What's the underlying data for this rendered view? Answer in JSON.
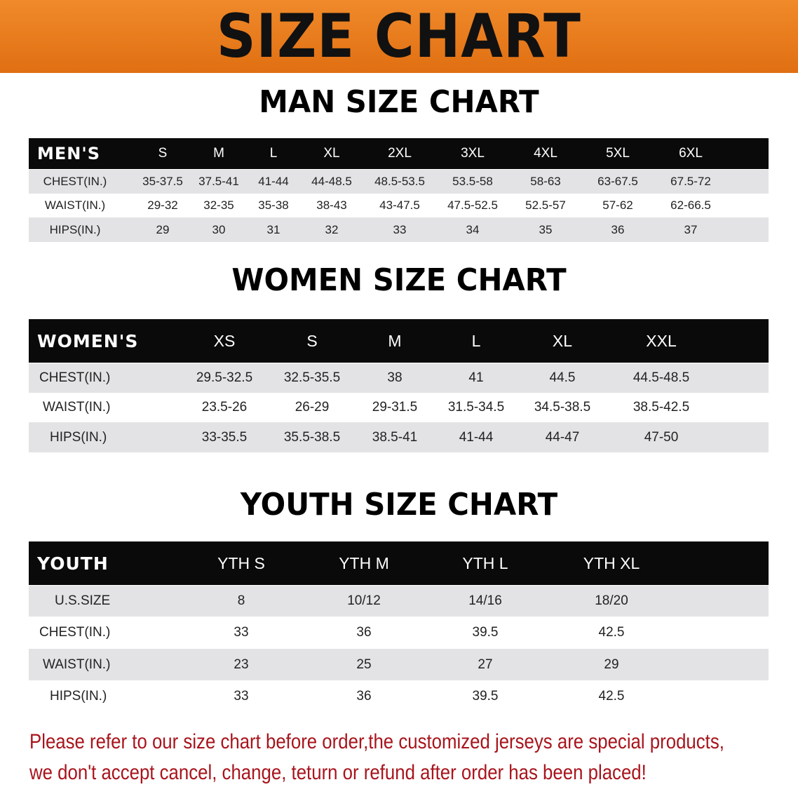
{
  "banner_title": "SIZE CHART",
  "colors": {
    "banner": "#e8761a",
    "header_row": "#0a0a0a",
    "stripe": "#e3e3e5",
    "note": "#a8141c"
  },
  "men": {
    "title": "MAN SIZE CHART",
    "header": "MEN'S",
    "sizes": [
      "S",
      "M",
      "L",
      "XL",
      "2XL",
      "3XL",
      "4XL",
      "5XL",
      "6XL"
    ],
    "rows": [
      {
        "label": "CHEST(IN.)",
        "values": [
          "35-37.5",
          "37.5-41",
          "41-44",
          "44-48.5",
          "48.5-53.5",
          "53.5-58",
          "58-63",
          "63-67.5",
          "67.5-72"
        ]
      },
      {
        "label": "WAIST(IN.)",
        "values": [
          "29-32",
          "32-35",
          "35-38",
          "38-43",
          "43-47.5",
          "47.5-52.5",
          "52.5-57",
          "57-62",
          "62-66.5"
        ]
      },
      {
        "label": "HIPS(IN.)",
        "values": [
          "29",
          "30",
          "31",
          "32",
          "33",
          "34",
          "35",
          "36",
          "37"
        ]
      }
    ]
  },
  "women": {
    "title": "WOMEN SIZE CHART",
    "header": "WOMEN'S",
    "sizes": [
      "XS",
      "S",
      "M",
      "L",
      "XL",
      "XXL"
    ],
    "rows": [
      {
        "label": "CHEST(IN.)",
        "values": [
          "29.5-32.5",
          "32.5-35.5",
          "38",
          "41",
          "44.5",
          "44.5-48.5"
        ]
      },
      {
        "label": "WAIST(IN.)",
        "values": [
          "23.5-26",
          "26-29",
          "29-31.5",
          "31.5-34.5",
          "34.5-38.5",
          "38.5-42.5"
        ]
      },
      {
        "label": "HIPS(IN.)",
        "values": [
          "33-35.5",
          "35.5-38.5",
          "38.5-41",
          "41-44",
          "44-47",
          "47-50"
        ]
      }
    ]
  },
  "youth": {
    "title": "YOUTH SIZE CHART",
    "header": "YOUTH",
    "sizes": [
      "YTH S",
      "YTH M",
      "YTH L",
      "YTH XL"
    ],
    "rows": [
      {
        "label": "U.S.SIZE",
        "values": [
          "8",
          "10/12",
          "14/16",
          "18/20"
        ]
      },
      {
        "label": "CHEST(IN.)",
        "values": [
          "33",
          "36",
          "39.5",
          "42.5"
        ]
      },
      {
        "label": "WAIST(IN.)",
        "values": [
          "23",
          "25",
          "27",
          "29"
        ]
      },
      {
        "label": "HIPS(IN.)",
        "values": [
          "33",
          "36",
          "39.5",
          "42.5"
        ]
      }
    ]
  },
  "note": {
    "line1": "Please refer to our size chart before order,the customized jerseys are special products,",
    "line2": "we don't accept cancel, change, teturn or refund after order has been placed!"
  }
}
